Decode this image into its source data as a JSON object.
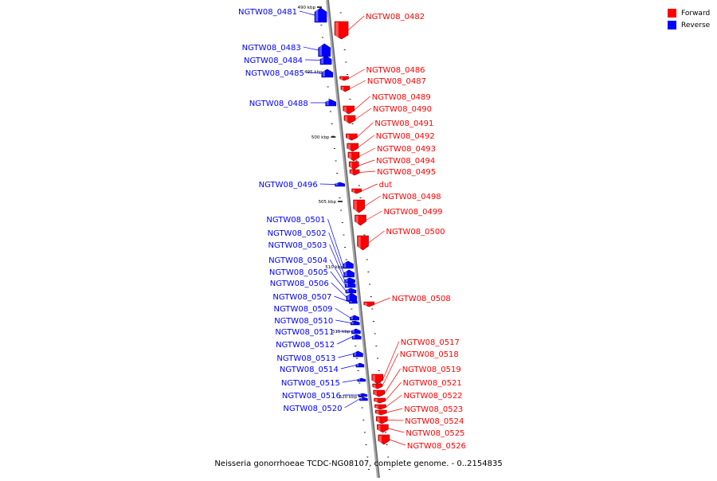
{
  "legend": {
    "forward_label": "Forward",
    "reverse_label": "Reverse",
    "forward_color": "#ff0000",
    "reverse_color": "#0000ff"
  },
  "caption": "Neisseria gonorrhoeae TCDC-NG08107, complete genome. - 0..2154835",
  "scale_ticks": [
    "490 kbp",
    "495 kbp",
    "500 kbp",
    "505 kbp",
    "510 kbp",
    "515 kbp",
    "520 kbp"
  ],
  "genes": [
    {
      "name": "NGTW08_0481",
      "strand": "reverse"
    },
    {
      "name": "NGTW08_0482",
      "strand": "forward"
    },
    {
      "name": "NGTW08_0483",
      "strand": "reverse"
    },
    {
      "name": "NGTW08_0484",
      "strand": "reverse"
    },
    {
      "name": "NGTW08_0485",
      "strand": "reverse"
    },
    {
      "name": "NGTW08_0486",
      "strand": "forward"
    },
    {
      "name": "NGTW08_0487",
      "strand": "forward"
    },
    {
      "name": "NGTW08_0488",
      "strand": "reverse"
    },
    {
      "name": "NGTW08_0489",
      "strand": "forward"
    },
    {
      "name": "NGTW08_0490",
      "strand": "forward"
    },
    {
      "name": "NGTW08_0491",
      "strand": "forward"
    },
    {
      "name": "NGTW08_0492",
      "strand": "forward"
    },
    {
      "name": "NGTW08_0493",
      "strand": "forward"
    },
    {
      "name": "NGTW08_0494",
      "strand": "forward"
    },
    {
      "name": "NGTW08_0495",
      "strand": "forward"
    },
    {
      "name": "NGTW08_0496",
      "strand": "reverse"
    },
    {
      "name": "dut",
      "strand": "forward"
    },
    {
      "name": "NGTW08_0498",
      "strand": "forward"
    },
    {
      "name": "NGTW08_0499",
      "strand": "forward"
    },
    {
      "name": "NGTW08_0500",
      "strand": "forward"
    },
    {
      "name": "NGTW08_0501",
      "strand": "reverse"
    },
    {
      "name": "NGTW08_0502",
      "strand": "reverse"
    },
    {
      "name": "NGTW08_0503",
      "strand": "reverse"
    },
    {
      "name": "NGTW08_0504",
      "strand": "reverse"
    },
    {
      "name": "NGTW08_0505",
      "strand": "reverse"
    },
    {
      "name": "NGTW08_0506",
      "strand": "reverse"
    },
    {
      "name": "NGTW08_0507",
      "strand": "reverse"
    },
    {
      "name": "NGTW08_0508",
      "strand": "forward"
    },
    {
      "name": "NGTW08_0509",
      "strand": "reverse"
    },
    {
      "name": "NGTW08_0510",
      "strand": "reverse"
    },
    {
      "name": "NGTW08_0511",
      "strand": "reverse"
    },
    {
      "name": "NGTW08_0512",
      "strand": "reverse"
    },
    {
      "name": "NGTW08_0513",
      "strand": "reverse"
    },
    {
      "name": "NGTW08_0514",
      "strand": "reverse"
    },
    {
      "name": "NGTW08_0515",
      "strand": "reverse"
    },
    {
      "name": "NGTW08_0516",
      "strand": "reverse"
    },
    {
      "name": "NGTW08_0520",
      "strand": "reverse"
    },
    {
      "name": "NGTW08_0517",
      "strand": "forward"
    },
    {
      "name": "NGTW08_0518",
      "strand": "forward"
    },
    {
      "name": "NGTW08_0519",
      "strand": "forward"
    },
    {
      "name": "NGTW08_0521",
      "strand": "forward"
    },
    {
      "name": "NGTW08_0522",
      "strand": "forward"
    },
    {
      "name": "NGTW08_0523",
      "strand": "forward"
    },
    {
      "name": "NGTW08_0524",
      "strand": "forward"
    },
    {
      "name": "NGTW08_0525",
      "strand": "forward"
    },
    {
      "name": "NGTW08_0526",
      "strand": "forward"
    }
  ]
}
